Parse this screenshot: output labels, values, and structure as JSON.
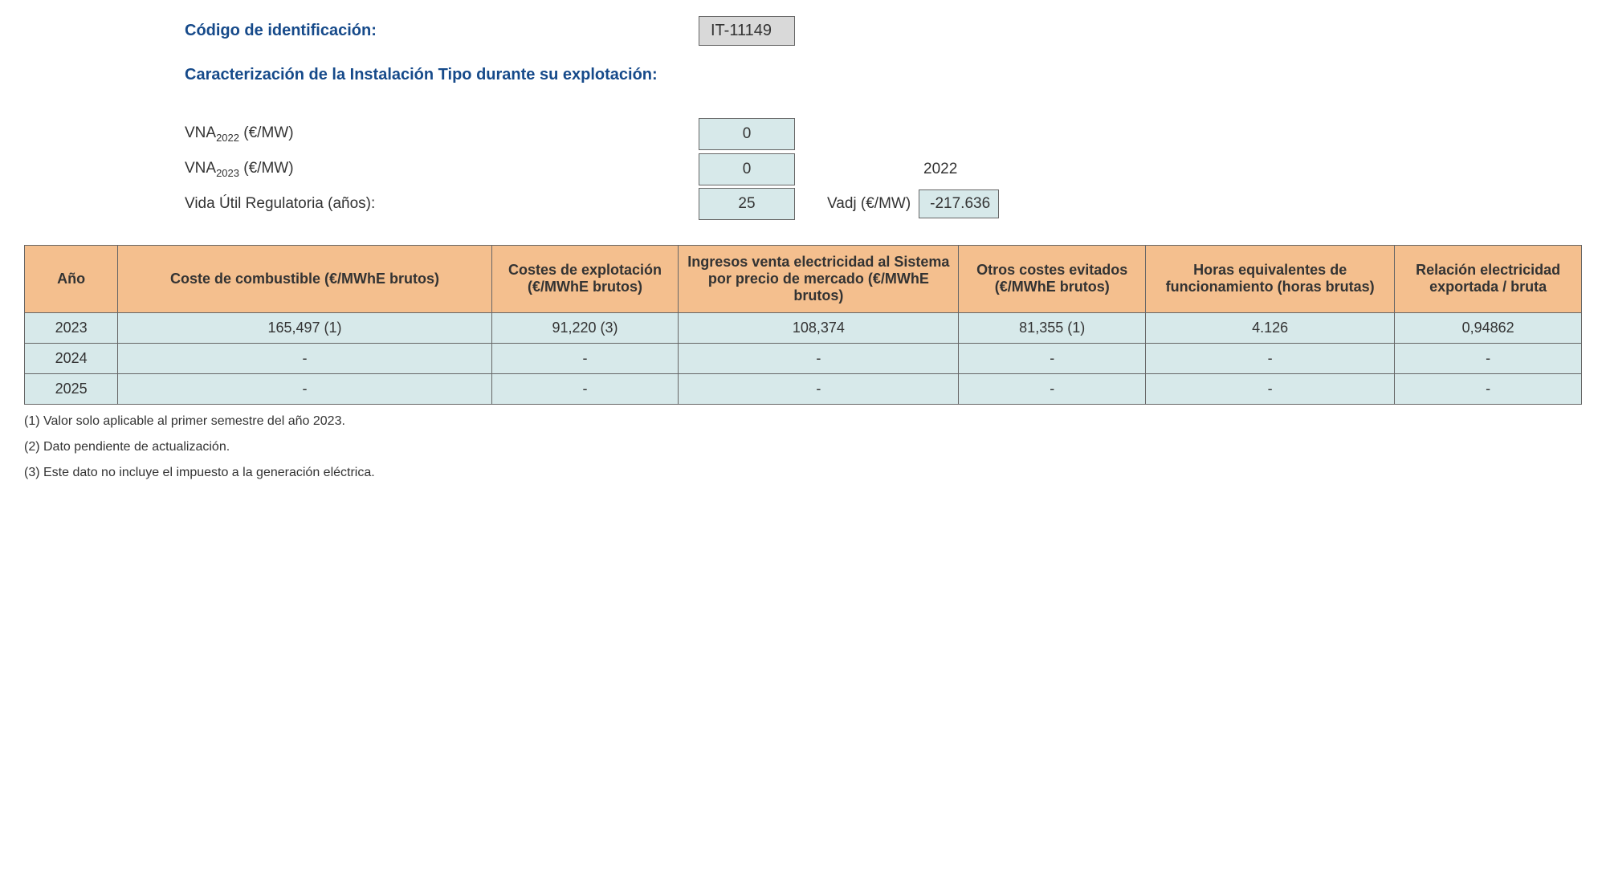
{
  "header": {
    "code_label": "Código de identificación:",
    "code_value": "IT-11149",
    "subtitle": "Caracterización de la Instalación Tipo durante su explotación:"
  },
  "params": {
    "vna_2022_label_pre": "VNA",
    "vna_2022_sub": "2022",
    "vna_2022_label_post": " (€/MW)",
    "vna_2022_value": "0",
    "vna_2023_label_pre": "VNA",
    "vna_2023_sub": "2023",
    "vna_2023_label_post": " (€/MW)",
    "vna_2023_value": "0",
    "vna_2023_year": "2022",
    "vida_label": "Vida Útil Regulatoria (años):",
    "vida_value": "25",
    "vadj_label": "Vadj (€/MW)",
    "vadj_value": "-217.636"
  },
  "table": {
    "columns": [
      "Año",
      "Coste de combustible (€/MWhE brutos)",
      "Costes de explotación (€/MWhE brutos)",
      "Ingresos venta electricidad al Sistema por precio de mercado (€/MWhE brutos)",
      "Otros costes evitados (€/MWhE brutos)",
      "Horas equivalentes de funcionamiento (horas brutas)",
      "Relación electricidad exportada / bruta"
    ],
    "col_widths": [
      "6%",
      "24%",
      "12%",
      "18%",
      "12%",
      "16%",
      "12%"
    ],
    "rows": [
      [
        "2023",
        "165,497 (1)",
        "91,220 (3)",
        "108,374",
        "81,355 (1)",
        "4.126",
        "0,94862"
      ],
      [
        "2024",
        "-",
        "-",
        "-",
        "-",
        "-",
        "-"
      ],
      [
        "2025",
        "-",
        "-",
        "-",
        "-",
        "-",
        "-"
      ]
    ]
  },
  "footnotes": [
    "(1) Valor solo aplicable al primer semestre del año 2023.",
    "(2) Dato pendiente de actualización.",
    "(3) Este dato no incluye el impuesto a la generación eléctrica."
  ],
  "colors": {
    "header_text": "#164a8a",
    "table_header_bg": "#f4bf8e",
    "table_cell_bg": "#d7e9ea",
    "code_box_bg": "#d9d9d9",
    "border": "#666666"
  }
}
